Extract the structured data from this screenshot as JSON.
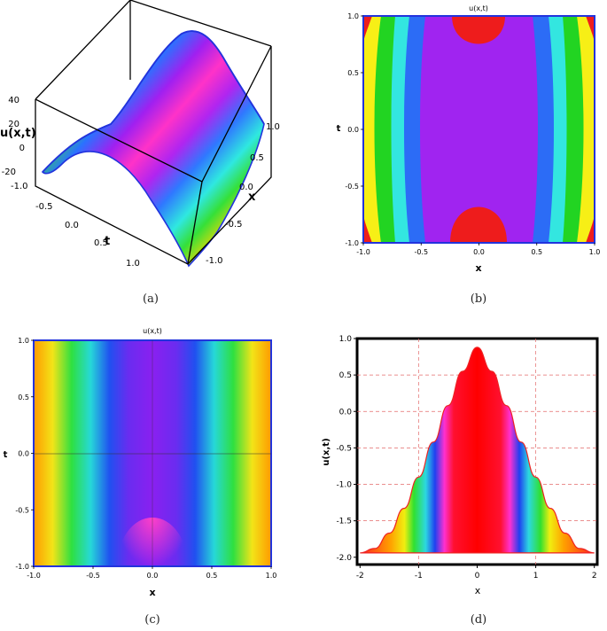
{
  "captions": [
    "(a)",
    "(b)",
    "(c)",
    "(d)"
  ],
  "chart_data": [
    {
      "type": "surface",
      "zlabel": "u(x,t)",
      "xlabel": "x",
      "tlabel": "t",
      "z_ticks": [
        "40",
        "20",
        "0",
        "-20"
      ],
      "x_ticks": [
        "1.0",
        "0.5",
        "0.0",
        "-0.5",
        "-1.0"
      ],
      "t_ticks": [
        "-1.0",
        "-0.5",
        "0.0",
        "0.5",
        "1.0"
      ],
      "xlim": [
        -1,
        1
      ],
      "tlim": [
        -1,
        1
      ],
      "zlim": [
        -30,
        40
      ]
    },
    {
      "type": "contour",
      "title": "u(x,t)",
      "xlabel": "x",
      "ylabel": "t",
      "x_ticks": [
        "-1.0",
        "-0.5",
        "0.0",
        "0.5",
        "1.0"
      ],
      "y_ticks": [
        "1.0",
        "0.5",
        "0.0",
        "-0.5",
        "-1.0"
      ],
      "xlim": [
        -1,
        1
      ],
      "ylim": [
        -1,
        1
      ],
      "band_colors": [
        "#ee1c1c",
        "#f7ef16",
        "#22d422",
        "#33e6e0",
        "#2c6cf6",
        "#a024f0"
      ]
    },
    {
      "type": "heatmap",
      "title": "u(x,t)",
      "xlabel": "x",
      "ylabel": "t",
      "x_ticks": [
        "-1.0",
        "-0.5",
        "0.0",
        "0.5",
        "1.0"
      ],
      "y_ticks": [
        "1.0",
        "0.5",
        "0.0",
        "-0.5",
        "-1.0"
      ],
      "xlim": [
        -1,
        1
      ],
      "ylim": [
        -1,
        1
      ]
    },
    {
      "type": "area",
      "xlabel": "x",
      "ylabel": "u(x,t)",
      "x_ticks": [
        "-2",
        "-1",
        "0",
        "1",
        "2"
      ],
      "y_ticks": [
        "1.0",
        "0.5",
        "0.0",
        "-0.5",
        "-1.0",
        "-1.5",
        "-2.0"
      ],
      "xlim": [
        -2.05,
        2.05
      ],
      "ylim": [
        -2.1,
        1.0
      ],
      "x": [
        -2.0,
        -1.75,
        -1.5,
        -1.25,
        -1.0,
        -0.75,
        -0.5,
        -0.25,
        0.0,
        0.25,
        0.5,
        0.75,
        1.0,
        1.25,
        1.5,
        1.75,
        2.0
      ],
      "y": [
        -1.94,
        -1.88,
        -1.67,
        -1.33,
        -0.9,
        -0.42,
        0.08,
        0.55,
        0.88,
        0.55,
        0.08,
        -0.42,
        -0.9,
        -1.33,
        -1.67,
        -1.88,
        -1.94
      ],
      "grid": true
    }
  ]
}
